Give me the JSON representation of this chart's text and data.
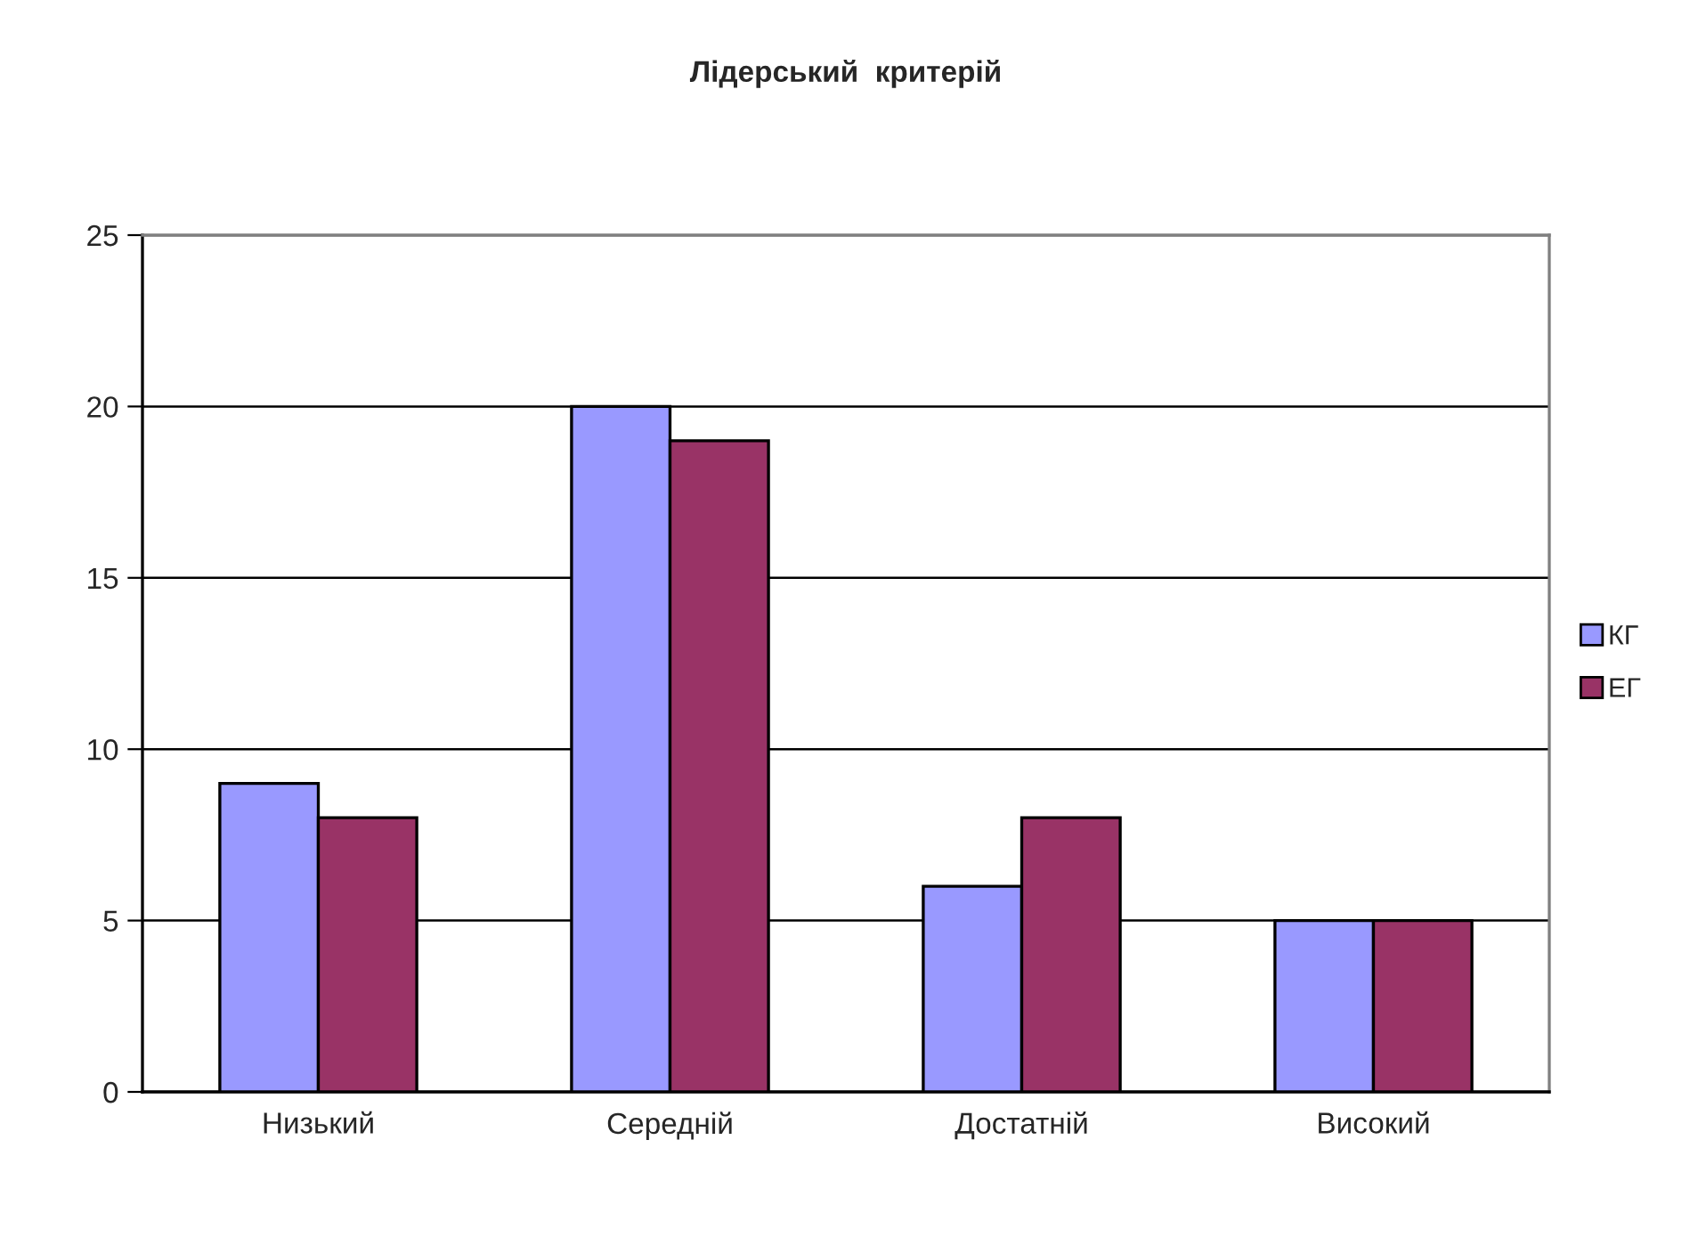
{
  "chart_data": {
    "type": "bar",
    "title": "Лідерський  критерій",
    "categories": [
      "Низький",
      "Середній",
      "Достатній",
      "Високий"
    ],
    "series": [
      {
        "name": "КГ",
        "color": "#9999ff",
        "values": [
          9,
          20,
          6,
          5
        ]
      },
      {
        "name": "ЕГ",
        "color": "#993366",
        "values": [
          8,
          19,
          8,
          5
        ]
      }
    ],
    "ylim": [
      0,
      25
    ],
    "yticks": [
      0,
      5,
      10,
      15,
      20,
      25
    ],
    "grid": "y",
    "legend": "right"
  }
}
